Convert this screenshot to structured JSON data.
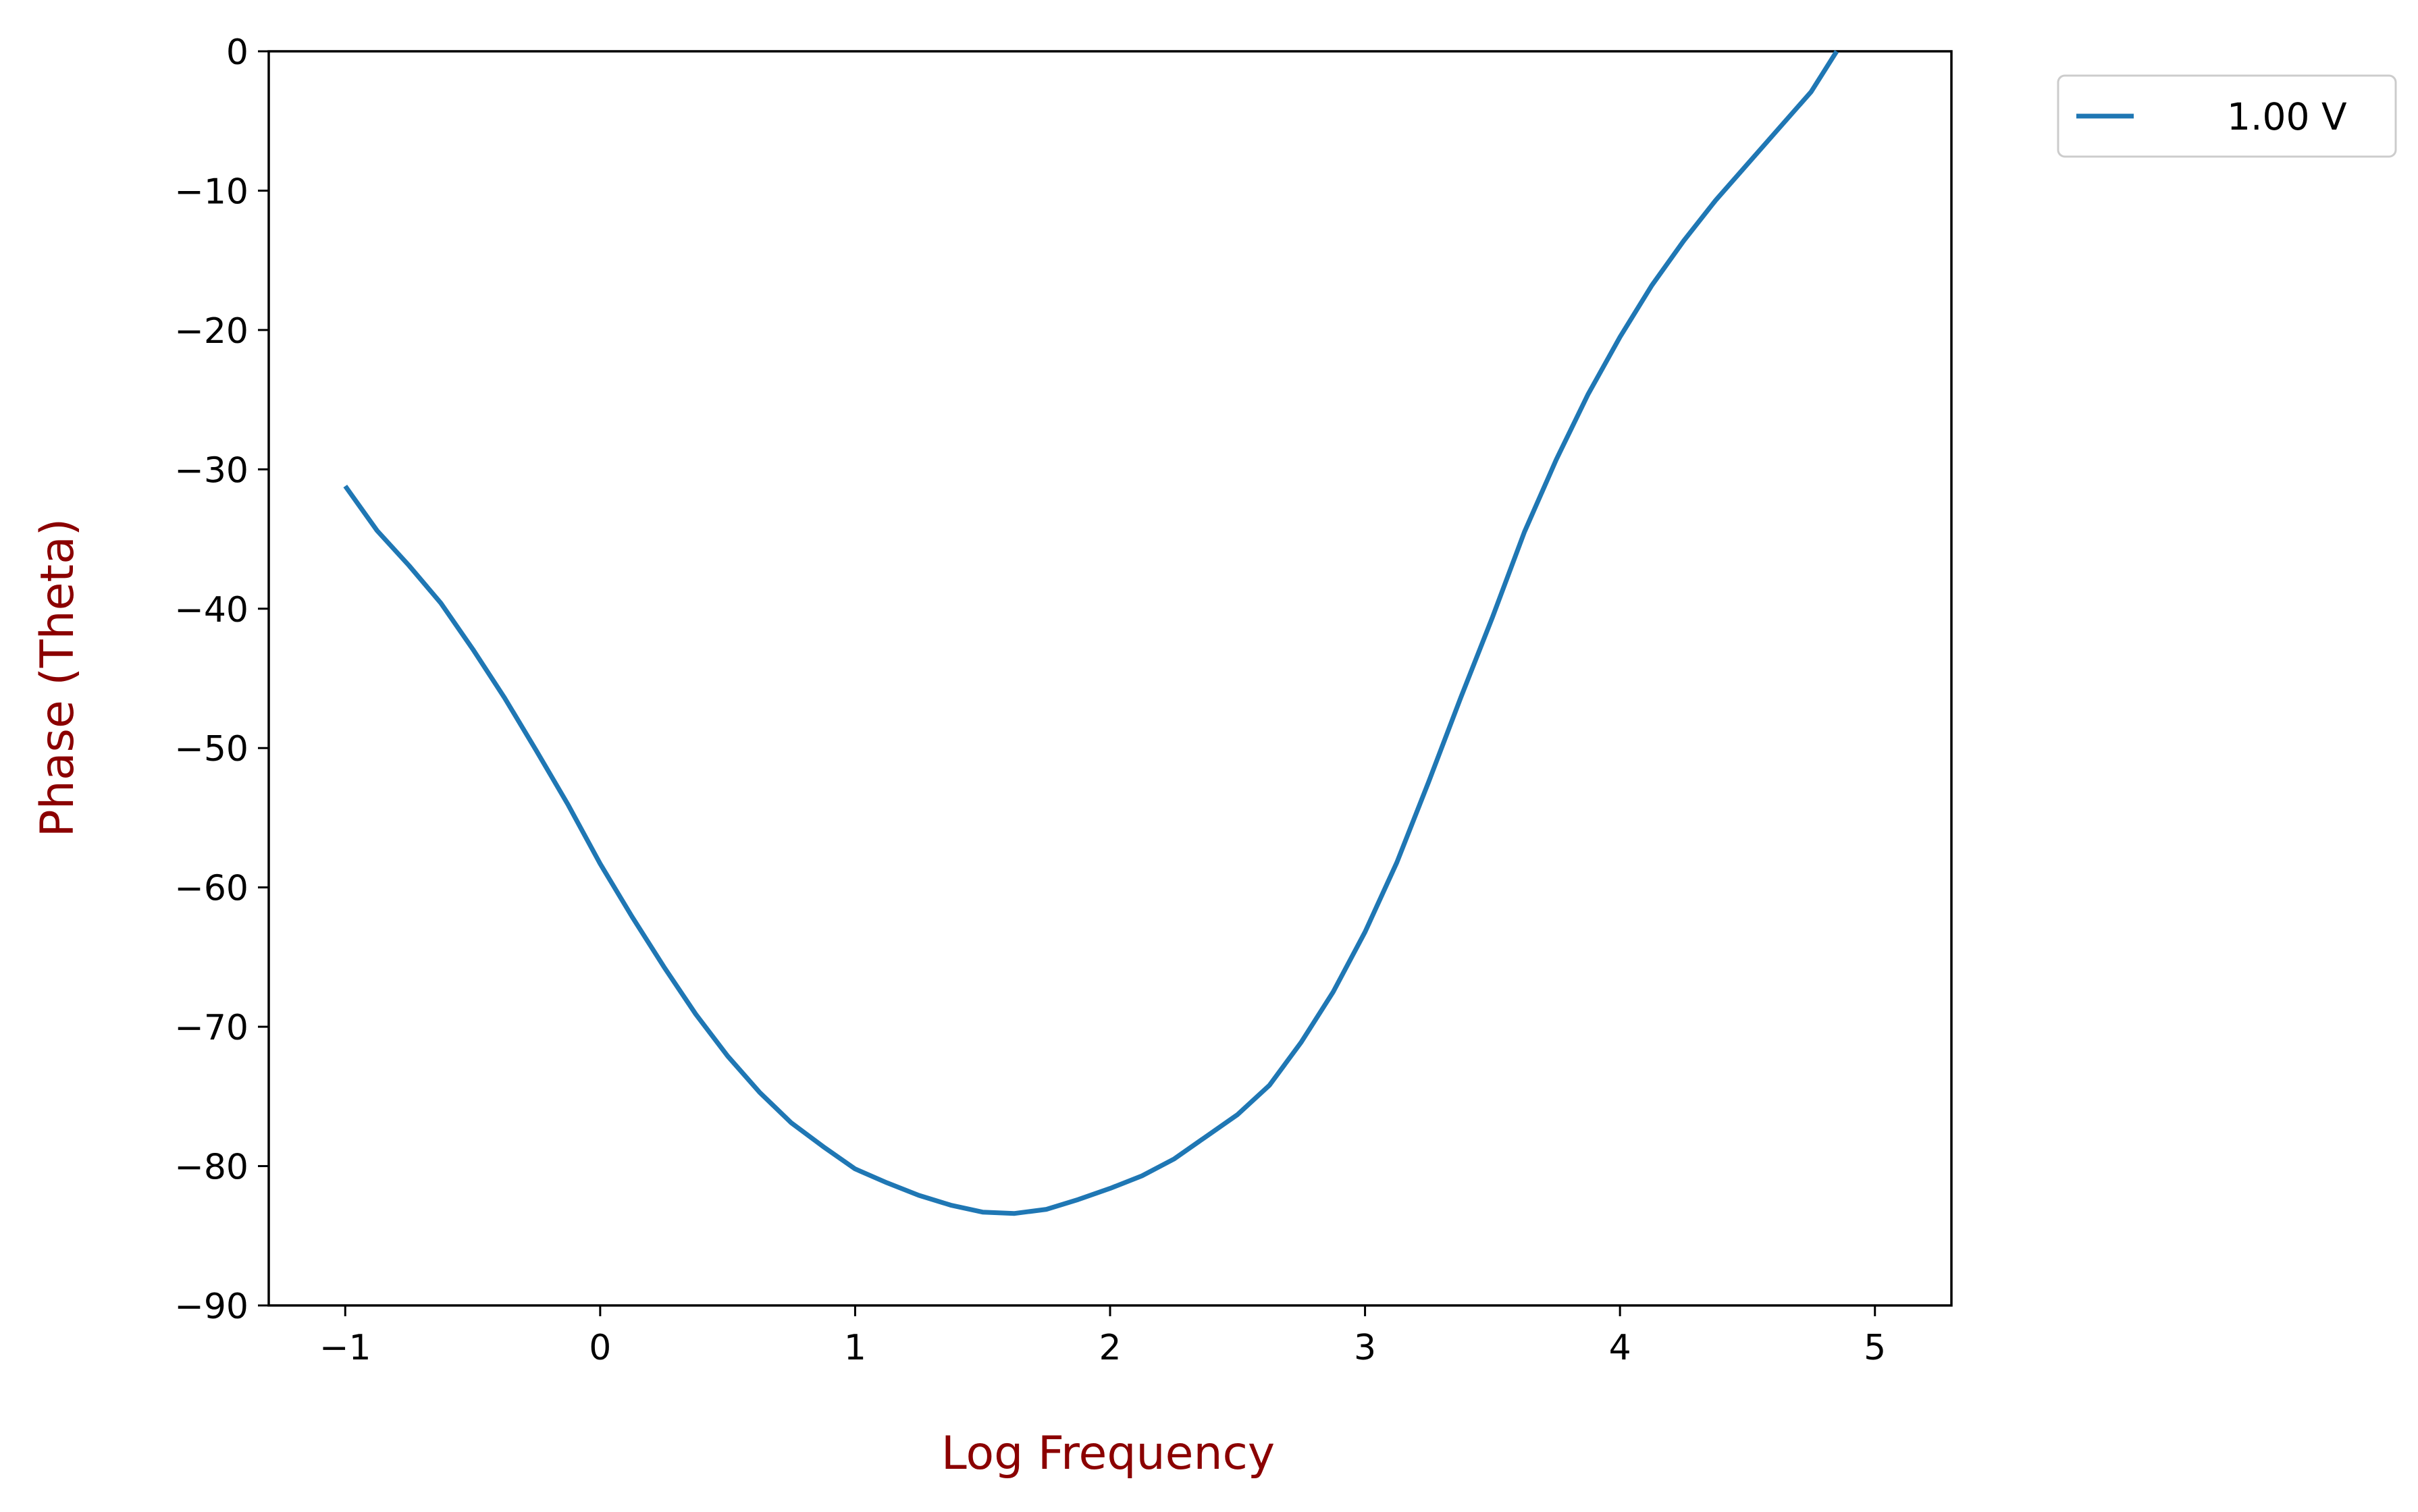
{
  "chart_data": {
    "type": "line",
    "xlabel": "Log Frequency",
    "ylabel": "Phase (Theta)",
    "label_color": "#8b0000",
    "xlim": [
      -1.3,
      5.3
    ],
    "ylim": [
      -90,
      0
    ],
    "xticks": [
      -1,
      0,
      1,
      2,
      3,
      4,
      5
    ],
    "xtick_labels": [
      "−1",
      "0",
      "1",
      "2",
      "3",
      "4",
      "5"
    ],
    "yticks": [
      0,
      -10,
      -20,
      -30,
      -40,
      -50,
      -60,
      -70,
      -80,
      -90
    ],
    "ytick_labels": [
      "0",
      "−10",
      "−20",
      "−30",
      "−40",
      "−50",
      "−60",
      "−70",
      "−80",
      "−90"
    ],
    "grid": false,
    "legend_position": "outside-top-right",
    "series": [
      {
        "name": "1.00 V",
        "color": "#1f77b4",
        "x": [
          -1.0,
          -0.875,
          -0.75,
          -0.625,
          -0.5,
          -0.375,
          -0.25,
          -0.125,
          0.0,
          0.125,
          0.25,
          0.375,
          0.5,
          0.625,
          0.75,
          0.875,
          1.0,
          1.125,
          1.25,
          1.375,
          1.5,
          1.625,
          1.75,
          1.875,
          2.0,
          2.125,
          2.25,
          2.375,
          2.5,
          2.625,
          2.75,
          2.875,
          3.0,
          3.125,
          3.25,
          3.375,
          3.5,
          3.625,
          3.75,
          3.875,
          4.0,
          4.125,
          4.25,
          4.375,
          4.5,
          4.625,
          4.75,
          4.85
        ],
        "y": [
          -31.2,
          -34.4,
          -36.9,
          -39.6,
          -42.9,
          -46.4,
          -50.2,
          -54.1,
          -58.3,
          -62.1,
          -65.7,
          -69.1,
          -72.1,
          -74.7,
          -76.9,
          -78.6,
          -80.2,
          -81.2,
          -82.1,
          -82.8,
          -83.3,
          -83.4,
          -83.1,
          -82.4,
          -81.6,
          -80.7,
          -79.5,
          -77.9,
          -76.3,
          -74.2,
          -71.1,
          -67.5,
          -63.2,
          -58.2,
          -52.4,
          -46.4,
          -40.6,
          -34.5,
          -29.3,
          -24.6,
          -20.5,
          -16.8,
          -13.6,
          -10.7,
          -8.1,
          -5.5,
          -2.9,
          0.0
        ]
      }
    ]
  }
}
